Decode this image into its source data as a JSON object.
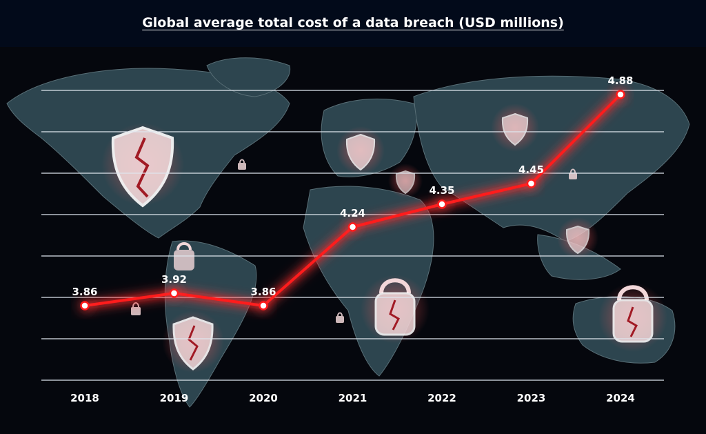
{
  "chart_data": {
    "type": "line",
    "title": "Global average total cost of a data breach (USD millions)",
    "categories": [
      "2018",
      "2019",
      "2020",
      "2021",
      "2022",
      "2023",
      "2024"
    ],
    "series": [
      {
        "values": [
          3.86,
          3.92,
          3.86,
          4.24,
          4.35,
          4.45,
          4.88
        ]
      }
    ],
    "data_labels": [
      "3.86",
      "3.92",
      "3.86",
      "4.24",
      "4.35",
      "4.45",
      "4.88"
    ],
    "xlabel": "",
    "ylabel": "",
    "grid": true,
    "legend": "none",
    "colors": {
      "line": "#ff1a1a",
      "glow": "#ff4040",
      "marker": "#ffffff",
      "grid": "#dfe6ee",
      "background": "#05070d",
      "map": "#6f9aa6"
    }
  }
}
